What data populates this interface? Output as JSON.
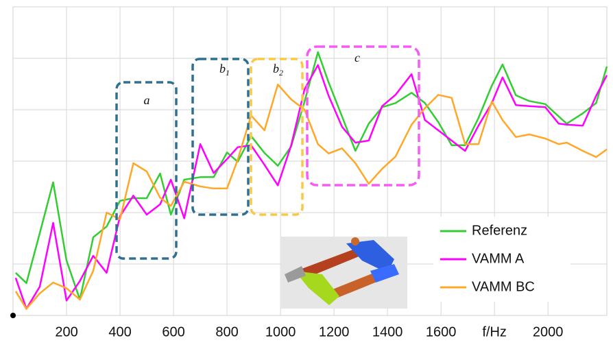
{
  "chart_data": {
    "type": "line",
    "x": [
      10,
      50,
      100,
      150,
      200,
      250,
      300,
      350,
      400,
      450,
      500,
      550,
      590,
      640,
      700,
      750,
      800,
      840,
      890,
      940,
      990,
      1040,
      1090,
      1140,
      1180,
      1230,
      1280,
      1330,
      1380,
      1430,
      1490,
      1540,
      1590,
      1640,
      1690,
      1740,
      1790,
      1830,
      1880,
      1930,
      1990,
      2040,
      2070,
      2130,
      2180,
      2220
    ],
    "series": [
      {
        "name": "Referenz",
        "color": "#33cc33",
        "values": [
          0.83,
          0.63,
          1.6,
          2.59,
          1.07,
          0.31,
          1.52,
          1.73,
          2.23,
          2.28,
          2.28,
          2.76,
          1.96,
          2.64,
          2.69,
          2.69,
          3.17,
          2.99,
          3.49,
          3.16,
          2.91,
          3.29,
          4.16,
          5.12,
          4.53,
          3.87,
          3.2,
          3.73,
          4.05,
          4.13,
          4.33,
          4.13,
          3.76,
          3.31,
          3.31,
          3.84,
          4.47,
          4.88,
          4.28,
          4.17,
          4.11,
          3.87,
          3.73,
          3.93,
          4.13,
          4.84
        ]
      },
      {
        "name": "VAMM A",
        "color": "#ff00ff",
        "values": [
          0.73,
          0.13,
          0.56,
          1.8,
          0.29,
          0.67,
          1.16,
          0.83,
          1.93,
          2.33,
          1.96,
          2.16,
          2.64,
          1.89,
          3.33,
          2.77,
          3.04,
          3.27,
          3.31,
          2.93,
          2.53,
          3.31,
          4.4,
          4.87,
          4.27,
          3.67,
          3.36,
          3.4,
          4.07,
          4.29,
          4.69,
          3.8,
          3.6,
          3.4,
          3.2,
          3.69,
          4.13,
          4.63,
          4.09,
          4.07,
          4.05,
          3.73,
          3.71,
          3.69,
          4.27,
          4.67
        ]
      },
      {
        "name": "VAMM BC",
        "color": "#ffa726",
        "values": [
          0.47,
          0.13,
          0.43,
          0.64,
          0.53,
          0.31,
          0.87,
          2.0,
          1.87,
          2.96,
          2.8,
          2.29,
          2.13,
          2.6,
          2.51,
          2.47,
          2.47,
          3.03,
          3.89,
          3.6,
          4.49,
          4.2,
          4.0,
          3.33,
          3.15,
          3.25,
          2.96,
          2.56,
          2.85,
          3.09,
          3.71,
          4.03,
          4.29,
          4.23,
          3.33,
          3.33,
          4.16,
          3.8,
          3.47,
          3.52,
          3.44,
          3.33,
          3.36,
          3.2,
          3.08,
          3.23
        ]
      }
    ],
    "xlim": [
      0,
      2220
    ],
    "xticks": [
      200,
      400,
      600,
      800,
      1000,
      1200,
      1400,
      1600,
      {
        "value": 1800,
        "label": "f/Hz"
      },
      2000
    ],
    "ylim": [
      0,
      6
    ],
    "ygrid": [
      1,
      2,
      3,
      4,
      5,
      6
    ],
    "grid": true,
    "legend": "lower right",
    "annotations": [
      {
        "label": "a"
      },
      {
        "label": "b",
        "sub": "1"
      },
      {
        "label": "b",
        "sub": "2"
      },
      {
        "label": "c"
      }
    ]
  }
}
